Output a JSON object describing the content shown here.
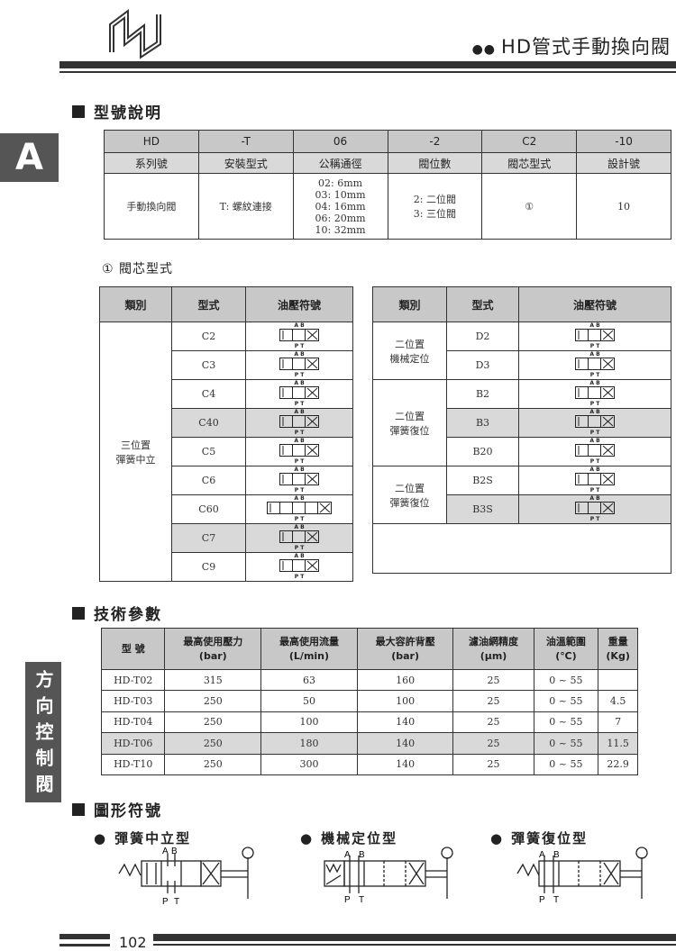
{
  "header": {
    "title": "HD管式手動換向閥",
    "logo": "CCLAIR"
  },
  "side_tab": "A",
  "side_category": "方向控制閥",
  "section1": {
    "heading": "型號說明",
    "codes": [
      "HD",
      "-T",
      "06",
      "-2",
      "C2",
      "-10"
    ],
    "labels": [
      "系列號",
      "安裝型式",
      "公稱通徑",
      "閥位數",
      "閥芯型式",
      "設計號"
    ],
    "values": [
      [
        "手動換向閥"
      ],
      [
        "T:  螺紋連接"
      ],
      [
        "02: 6mm",
        "03: 10mm",
        "04: 16mm",
        "06: 20mm",
        "10: 32mm"
      ],
      [
        "2: 二位閥",
        "3: 三位閥"
      ],
      [
        "①"
      ],
      [
        "10"
      ]
    ]
  },
  "spool": {
    "heading": "① 閥芯型式",
    "columns": [
      "類別",
      "型式",
      "油壓符號"
    ],
    "left_group": "三位置\n彈簧中立",
    "left_rows": [
      {
        "type": "C2",
        "highlight": false
      },
      {
        "type": "C3",
        "highlight": false
      },
      {
        "type": "C4",
        "highlight": false
      },
      {
        "type": "C40",
        "highlight": true
      },
      {
        "type": "C5",
        "highlight": false
      },
      {
        "type": "C6",
        "highlight": false
      },
      {
        "type": "C60",
        "highlight": false
      },
      {
        "type": "C7",
        "highlight": true
      },
      {
        "type": "C9",
        "highlight": false
      }
    ],
    "right_groups": [
      {
        "label": "二位置\n機械定位",
        "rows": [
          {
            "type": "D2",
            "highlight": false
          },
          {
            "type": "D3",
            "highlight": false
          }
        ]
      },
      {
        "label": "二位置\n彈簧復位",
        "rows": [
          {
            "type": "B2",
            "highlight": false
          },
          {
            "type": "B3",
            "highlight": true
          },
          {
            "type": "B20",
            "highlight": false
          }
        ]
      },
      {
        "label": "二位置\n彈簧復位",
        "rows": [
          {
            "type": "B2S",
            "highlight": false
          },
          {
            "type": "B3S",
            "highlight": true
          }
        ]
      }
    ],
    "port_top": "A B",
    "port_bottom": "P T"
  },
  "section2": {
    "heading": "技術參數",
    "columns": [
      [
        "型 號",
        ""
      ],
      [
        "最高使用壓力",
        "(bar)"
      ],
      [
        "最高使用流量",
        "(L/min)"
      ],
      [
        "最大容許背壓",
        "(bar)"
      ],
      [
        "濾油網精度",
        "(μm)"
      ],
      [
        "油溫範圍",
        "(℃)"
      ],
      [
        "重量",
        "(Kg)"
      ]
    ],
    "rows": [
      {
        "cells": [
          "HD-T02",
          "315",
          "63",
          "160",
          "25",
          "0 ~ 55",
          ""
        ],
        "highlight": false
      },
      {
        "cells": [
          "HD-T03",
          "250",
          "50",
          "100",
          "25",
          "0 ~ 55",
          "4.5"
        ],
        "highlight": false
      },
      {
        "cells": [
          "HD-T04",
          "250",
          "100",
          "140",
          "25",
          "0 ~ 55",
          "7"
        ],
        "highlight": false
      },
      {
        "cells": [
          "HD-T06",
          "250",
          "180",
          "140",
          "25",
          "0 ~ 55",
          "11.5"
        ],
        "highlight": true
      },
      {
        "cells": [
          "HD-T10",
          "250",
          "300",
          "140",
          "25",
          "0 ~ 55",
          "22.9"
        ],
        "highlight": false
      }
    ]
  },
  "section3": {
    "heading": "圖形符號",
    "symbols": [
      {
        "label": "彈簧中立型"
      },
      {
        "label": "機械定位型"
      },
      {
        "label": "彈簧復位型"
      }
    ],
    "ports": {
      "a": "A",
      "b": "B",
      "p": "P",
      "t": "T"
    }
  },
  "footer": {
    "page": "102"
  }
}
